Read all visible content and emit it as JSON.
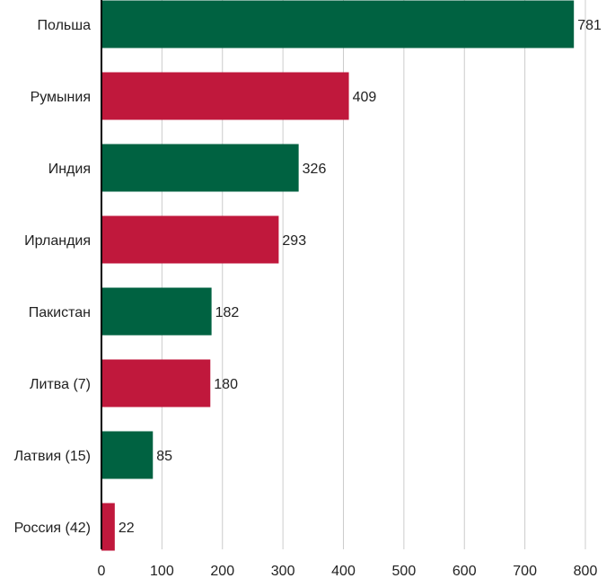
{
  "chart_data": {
    "type": "bar",
    "orientation": "horizontal",
    "categories": [
      "Польша",
      "Румыния",
      "Индия",
      "Ирландия",
      "Пакистан",
      "Литва (7)",
      "Латвия (15)",
      "Россия (42)"
    ],
    "values": [
      781,
      409,
      326,
      293,
      182,
      180,
      85,
      22
    ],
    "bar_colors": [
      "#006241",
      "#c0183c",
      "#006241",
      "#c0183c",
      "#006241",
      "#c0183c",
      "#006241",
      "#c0183c"
    ],
    "xlim": [
      0,
      800
    ],
    "x_ticks": [
      0,
      100,
      200,
      300,
      400,
      500,
      600,
      700,
      800
    ],
    "x_tick_labels": [
      "0",
      "100",
      "200",
      "300",
      "400",
      "500",
      "600",
      "700",
      "800"
    ],
    "data_labels": [
      "781",
      "409",
      "326",
      "293",
      "182",
      "180",
      "85",
      "22"
    ],
    "grid": "vertical",
    "grid_color": "#cccccc",
    "axis_color": "#000000",
    "title": "",
    "xlabel": "",
    "ylabel": ""
  }
}
